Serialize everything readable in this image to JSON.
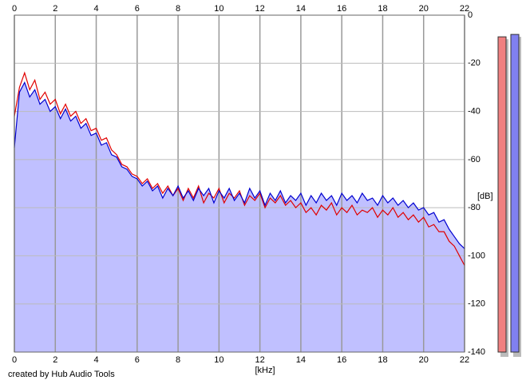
{
  "chart_data": {
    "type": "spectrum",
    "x_label": "[kHz]",
    "y_label": "[dB]",
    "x": [
      0,
      0.25,
      0.5,
      0.75,
      1,
      1.25,
      1.5,
      1.75,
      2,
      2.25,
      2.5,
      2.75,
      3,
      3.25,
      3.5,
      3.75,
      4,
      4.25,
      4.5,
      4.75,
      5,
      5.25,
      5.5,
      5.75,
      6,
      6.25,
      6.5,
      6.75,
      7,
      7.25,
      7.5,
      7.75,
      8,
      8.25,
      8.5,
      8.75,
      9,
      9.25,
      9.5,
      9.75,
      10,
      10.25,
      10.5,
      10.75,
      11,
      11.25,
      11.5,
      11.75,
      12,
      12.25,
      12.5,
      12.75,
      13,
      13.25,
      13.5,
      13.75,
      14,
      14.25,
      14.5,
      14.75,
      15,
      15.25,
      15.5,
      15.75,
      16,
      16.25,
      16.5,
      16.75,
      17,
      17.25,
      17.5,
      17.75,
      18,
      18.25,
      18.5,
      18.75,
      19,
      19.25,
      19.5,
      19.75,
      20,
      20.25,
      20.5,
      20.75,
      21,
      21.25,
      21.5,
      21.75,
      22
    ],
    "series": [
      {
        "color": "#e00000",
        "values": [
          -42,
          -30,
          -24,
          -31,
          -27,
          -35,
          -32,
          -37,
          -35,
          -41,
          -37,
          -42,
          -40,
          -45,
          -43,
          -48,
          -47,
          -52,
          -51,
          -56,
          -58,
          -62,
          -63,
          -66,
          -67,
          -70,
          -68,
          -72,
          -70,
          -74,
          -71,
          -75,
          -72,
          -77,
          -72,
          -76,
          -71,
          -78,
          -74,
          -76,
          -72,
          -78,
          -74,
          -76,
          -73,
          -79,
          -75,
          -77,
          -74,
          -80,
          -76,
          -78,
          -75,
          -79,
          -77,
          -80,
          -78,
          -82,
          -80,
          -83,
          -79,
          -81,
          -78,
          -83,
          -80,
          -82,
          -79,
          -83,
          -81,
          -82,
          -80,
          -84,
          -81,
          -83,
          -80,
          -84,
          -82,
          -85,
          -83,
          -86,
          -84,
          -88,
          -87,
          -90,
          -90,
          -94,
          -96,
          -100,
          -104
        ]
      },
      {
        "color": "#0000d0",
        "fill": "#c0c0ff",
        "values": [
          -55,
          -32,
          -28,
          -34,
          -31,
          -37,
          -35,
          -40,
          -38,
          -43,
          -39,
          -44,
          -42,
          -47,
          -45,
          -50,
          -49,
          -54,
          -53,
          -58,
          -59,
          -63,
          -64,
          -67,
          -68,
          -71,
          -69,
          -73,
          -71,
          -76,
          -72,
          -75,
          -71,
          -76,
          -73,
          -77,
          -72,
          -75,
          -72,
          -78,
          -73,
          -76,
          -72,
          -77,
          -74,
          -78,
          -72,
          -76,
          -73,
          -79,
          -74,
          -77,
          -73,
          -78,
          -75,
          -77,
          -74,
          -79,
          -75,
          -78,
          -74,
          -77,
          -75,
          -79,
          -74,
          -77,
          -75,
          -78,
          -74,
          -77,
          -76,
          -79,
          -75,
          -78,
          -76,
          -79,
          -77,
          -80,
          -78,
          -81,
          -80,
          -83,
          -82,
          -86,
          -85,
          -89,
          -92,
          -95,
          -97
        ]
      }
    ],
    "xlim": [
      0,
      22
    ],
    "ylim": [
      0,
      -140
    ],
    "xticks": [
      0,
      2,
      4,
      6,
      8,
      10,
      12,
      14,
      16,
      18,
      20,
      22
    ],
    "yticks": [
      0,
      -20,
      -40,
      -60,
      -80,
      -100,
      -120,
      -140
    ],
    "grid": true,
    "meters": [
      {
        "color": "#f08080",
        "value": -9
      },
      {
        "color": "#8080f0",
        "value": -8
      }
    ]
  },
  "footer": "created by Hub Audio Tools"
}
